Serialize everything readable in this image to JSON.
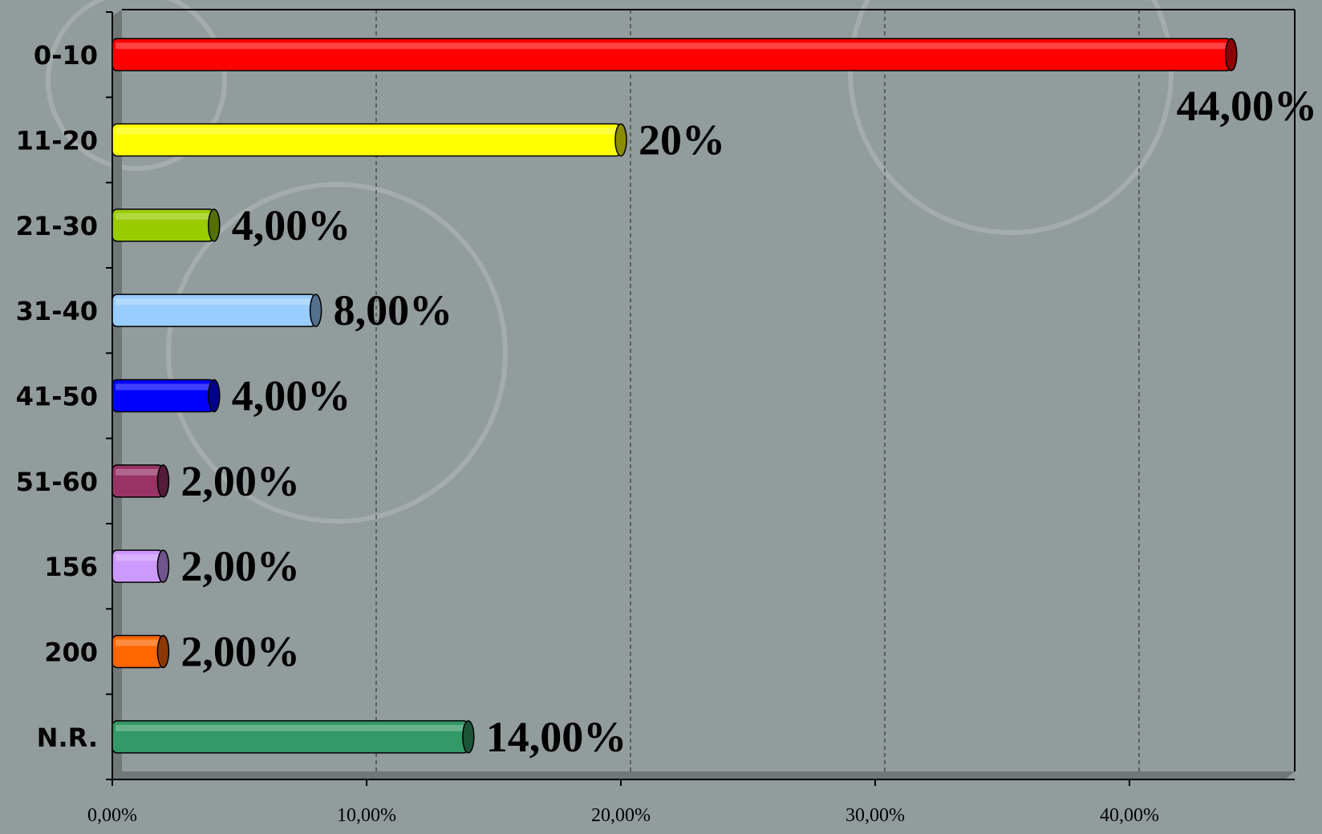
{
  "chart_data": {
    "type": "barh",
    "categories": [
      "0-10",
      "11-20",
      "21-30",
      "31-40",
      "41-50",
      "51-60",
      "156",
      "200",
      "N.R."
    ],
    "series": [
      {
        "values": [
          44,
          20,
          4,
          8,
          4,
          2,
          2,
          2,
          14
        ],
        "value_labels": [
          "44,00%",
          "20%",
          "4,00%",
          "8,00%",
          "4,00%",
          "2,00%",
          "2,00%",
          "2,00%",
          "14,00%"
        ],
        "colors": [
          "#ff0000",
          "#ffff00",
          "#99cc00",
          "#99ccff",
          "#0000ff",
          "#993366",
          "#cc99ff",
          "#ff6600",
          "#339966"
        ]
      }
    ],
    "xlim": [
      0,
      46.5
    ],
    "xticks": [
      {
        "value": 0,
        "label": "0,00%"
      },
      {
        "value": 10,
        "label": "10,00%"
      },
      {
        "value": 20,
        "label": "20,00%"
      },
      {
        "value": 30,
        "label": "30,00%"
      },
      {
        "value": 40,
        "label": "40,00%"
      }
    ],
    "grid": true
  }
}
